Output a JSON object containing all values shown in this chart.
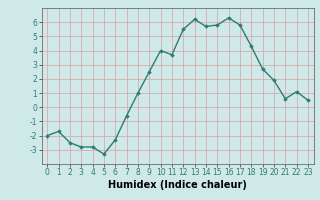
{
  "x": [
    0,
    1,
    2,
    3,
    4,
    5,
    6,
    7,
    8,
    9,
    10,
    11,
    12,
    13,
    14,
    15,
    16,
    17,
    18,
    19,
    20,
    21,
    22,
    23
  ],
  "y": [
    -2.0,
    -1.7,
    -2.5,
    -2.8,
    -2.8,
    -3.3,
    -2.3,
    -0.6,
    1.0,
    2.5,
    4.0,
    3.7,
    5.5,
    6.2,
    5.7,
    5.8,
    6.3,
    5.8,
    4.3,
    2.7,
    1.9,
    0.6,
    1.1,
    0.5
  ],
  "line_color": "#2e7d6e",
  "marker": "D",
  "marker_size": 1.8,
  "line_width": 1.0,
  "xlabel": "Humidex (Indice chaleur)",
  "xlim": [
    -0.5,
    23.5
  ],
  "ylim": [
    -4,
    7
  ],
  "yticks": [
    -3,
    -2,
    -1,
    0,
    1,
    2,
    3,
    4,
    5,
    6
  ],
  "xticks": [
    0,
    1,
    2,
    3,
    4,
    5,
    6,
    7,
    8,
    9,
    10,
    11,
    12,
    13,
    14,
    15,
    16,
    17,
    18,
    19,
    20,
    21,
    22,
    23
  ],
  "xtick_labels": [
    "0",
    "1",
    "2",
    "3",
    "4",
    "5",
    "6",
    "7",
    "8",
    "9",
    "10",
    "11",
    "12",
    "13",
    "14",
    "15",
    "16",
    "17",
    "18",
    "19",
    "20",
    "21",
    "22",
    "23"
  ],
  "bg_color": "#cfe8e8",
  "grid_color": "#d9a0a0",
  "tick_fontsize": 5.5,
  "xlabel_fontsize": 7.0
}
